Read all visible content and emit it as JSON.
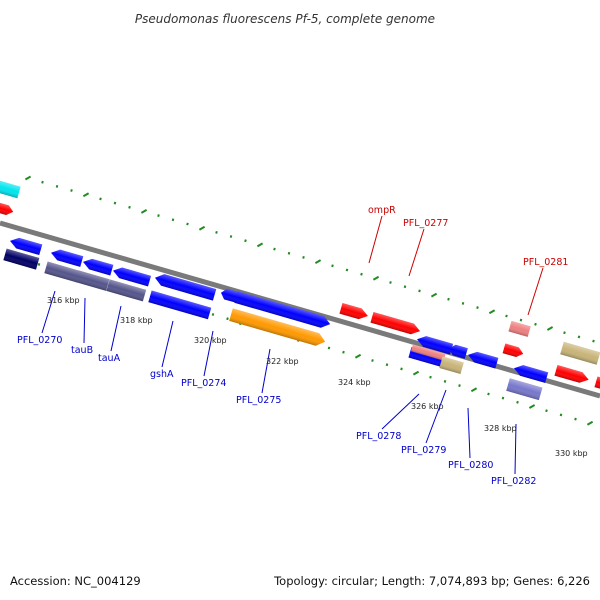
{
  "title": "Pseudomonas fluorescens Pf-5, complete genome",
  "accession": "Accession: NC_004129",
  "topology": "Topology: circular; Length: 7,074,893 bp; Genes: 6,226",
  "colors": {
    "backbone": "#808080",
    "forward_gene": "#ff0000",
    "reverse_gene": "#0000ff",
    "label_forward": "#cc0000",
    "label_reverse": "#0000cc",
    "tick": "#228b22",
    "other_orange": "#ff9900",
    "other_tan": "#c8b478",
    "other_navy": "#000066",
    "other_slate": "#55558c",
    "other_pink": "#ee8080",
    "other_cyan": "#00e5ee",
    "other_lavender": "#7777cc"
  },
  "tick_labels": [
    "316 kbp",
    "318 kbp",
    "320 kbp",
    "322 kbp",
    "324 kbp",
    "326 kbp",
    "328 kbp",
    "330 kbp"
  ],
  "gene_labels_forward": [
    "ompR",
    "PFL_0277",
    "PFL_0281"
  ],
  "gene_labels_reverse": [
    "PFL_0270",
    "tauB",
    "tauA",
    "gshA",
    "PFL_0274",
    "PFL_0275",
    "PFL_0278",
    "PFL_0279",
    "PFL_0280",
    "PFL_0282"
  ]
}
